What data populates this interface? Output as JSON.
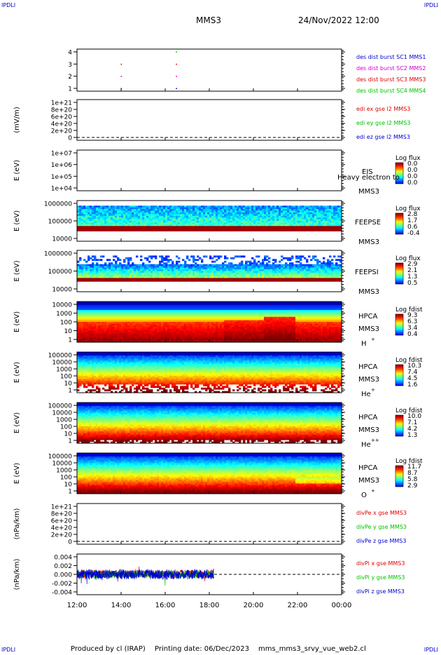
{
  "corners": {
    "tl": "IPDLI",
    "tr": "IPDLI",
    "bl": "IPDLI",
    "br": "IPDLI"
  },
  "header": {
    "spacecraft": "MMS3",
    "datetime": "24/Nov/2022 12:00"
  },
  "footer": {
    "produced_by": "Produced by cl (IRAP)",
    "printing_date": "Printing date: 06/Dec/2023",
    "filename": "mms_mms3_srvy_vue_web2.cl"
  },
  "colors": {
    "red": "#e00000",
    "green": "#00c000",
    "blue": "#0000d0",
    "magenta": "#d000d0"
  },
  "chart_data": [
    {
      "type": "scatter",
      "title": "",
      "yticks": [
        "4",
        "3",
        "2",
        "1"
      ],
      "ylim": [
        0.5,
        4.5
      ],
      "series": [
        {
          "name": "des dist burst SC1 MMS1",
          "color": "#0000d0",
          "x": [
            14.0,
            16.5
          ],
          "y": [
            1,
            1
          ]
        },
        {
          "name": "des dist burst SC2 MMS2",
          "color": "#d000d0",
          "x": [
            14.0,
            16.5
          ],
          "y": [
            2,
            2
          ]
        },
        {
          "name": "des dist burst SC3 MMS3",
          "color": "#e00000",
          "x": [
            14.0,
            16.5
          ],
          "y": [
            3,
            3
          ]
        },
        {
          "name": "des dist burst SC4 MMS4",
          "color": "#00c000",
          "x": [
            16.5
          ],
          "y": [
            4
          ]
        }
      ]
    },
    {
      "type": "line",
      "ylabel": "(mV/m)",
      "yticks": [
        "1e+21",
        "8e+20",
        "6e+20",
        "4e+20",
        "2e+20",
        "0"
      ],
      "series": [
        {
          "name": "edi ex gse l2 MMS3",
          "color": "#e00000"
        },
        {
          "name": "edi ey gse l2 MMS3",
          "color": "#00c000"
        },
        {
          "name": "edi ez gse l2 MMS3",
          "color": "#0000d0"
        }
      ]
    },
    {
      "type": "heatmap",
      "ylabel": "E (eV)",
      "yticks": [
        "1e+07",
        "1e+06",
        "1e+05",
        "1e+04"
      ],
      "instrument": "EIS",
      "extra": "Heavy electron to",
      "sc": "MMS3",
      "cbar_title": "Log flux",
      "cbar_ticks": [
        "0.0",
        "0.0",
        "0.0",
        "0.0"
      ]
    },
    {
      "type": "heatmap",
      "ylabel": "E (eV)",
      "yticks": [
        "1000000",
        "100000",
        "10000"
      ],
      "instrument": "FEEPSE",
      "sc": "MMS3",
      "cbar_title": "Log flux",
      "cbar_ticks": [
        "2.8",
        "1.7",
        "0.6",
        "-0.4"
      ]
    },
    {
      "type": "heatmap",
      "ylabel": "E (eV)",
      "yticks": [
        "1000000",
        "100000",
        "10000"
      ],
      "instrument": "FEEPSI",
      "sc": "MMS3",
      "cbar_title": "Log flux",
      "cbar_ticks": [
        "2.9",
        "2.1",
        "1.3",
        "0.5"
      ]
    },
    {
      "type": "heatmap",
      "ylabel": "E (eV)",
      "yticks": [
        "10000",
        "1000",
        "100",
        "10",
        "1"
      ],
      "instrument": "HPCA",
      "sc": "MMS3",
      "species": "H",
      "charge": "+",
      "cbar_title": "Log fdist",
      "cbar_ticks": [
        "9.3",
        "6.3",
        "3.4",
        "0.4"
      ]
    },
    {
      "type": "heatmap",
      "ylabel": "E (eV)",
      "yticks": [
        "100000",
        "10000",
        "1000",
        "100",
        "10",
        "1"
      ],
      "instrument": "HPCA",
      "sc": "MMS3",
      "species": "He",
      "charge": "+",
      "cbar_title": "Log fdist",
      "cbar_ticks": [
        "10.3",
        "7.4",
        "4.5",
        "1.6"
      ]
    },
    {
      "type": "heatmap",
      "ylabel": "E (eV)",
      "yticks": [
        "100000",
        "10000",
        "1000",
        "100",
        "10",
        "1"
      ],
      "instrument": "HPCA",
      "sc": "MMS3",
      "species": "He",
      "charge": "++",
      "cbar_title": "Log fdist",
      "cbar_ticks": [
        "10.0",
        "7.1",
        "4.2",
        "1.3"
      ]
    },
    {
      "type": "heatmap",
      "ylabel": "E (eV)",
      "yticks": [
        "100000",
        "10000",
        "1000",
        "100",
        "10",
        "1"
      ],
      "instrument": "HPCA",
      "sc": "MMS3",
      "species": "O",
      "charge": "+",
      "cbar_title": "Log fdist",
      "cbar_ticks": [
        "11.7",
        "8.7",
        "5.8",
        "2.9"
      ]
    },
    {
      "type": "line",
      "ylabel": "(nPa/km)",
      "yticks": [
        "1e+21",
        "8e+20",
        "6e+20",
        "4e+20",
        "2e+20",
        "0"
      ],
      "series": [
        {
          "name": "divPe x gse MMS3",
          "color": "#e00000"
        },
        {
          "name": "divPe y gse MMS3",
          "color": "#00c000"
        },
        {
          "name": "divPe z gse MMS3",
          "color": "#0000d0"
        }
      ]
    },
    {
      "type": "line",
      "ylabel": "(nPa/km)",
      "yticks": [
        "0.004",
        "0.002",
        "0.000",
        "-0.002",
        "-0.004"
      ],
      "ylim": [
        -0.0045,
        0.0045
      ],
      "x_end": 18.2,
      "series": [
        {
          "name": "divPi x gse MMS3",
          "color": "#e00000"
        },
        {
          "name": "divPi y gse MMS3",
          "color": "#00c000"
        },
        {
          "name": "divPi z gse MMS3",
          "color": "#0000d0"
        }
      ]
    }
  ],
  "xaxis": {
    "ticks": [
      "12:00",
      "14:00",
      "16:00",
      "18:00",
      "20:00",
      "22:00",
      "00:00"
    ],
    "xlim_hours": [
      12,
      24
    ]
  }
}
